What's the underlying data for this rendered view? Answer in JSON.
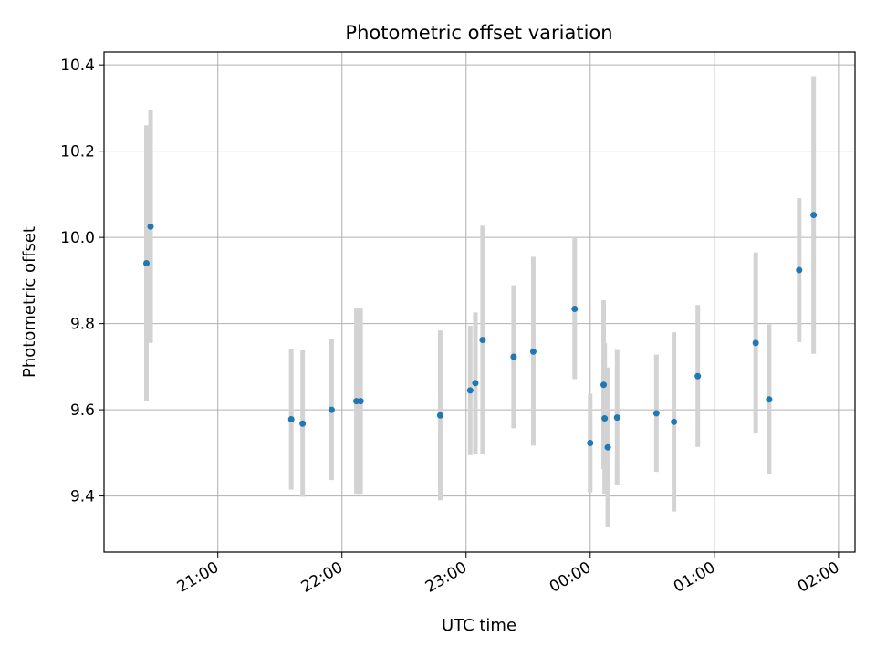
{
  "chart_data": {
    "type": "scatter",
    "title": "Photometric offset variation",
    "xlabel": "UTC time",
    "ylabel": "Photometric offset",
    "x_tick_labels": [
      "21:00",
      "22:00",
      "23:00",
      "00:00",
      "01:00",
      "02:00"
    ],
    "x_tick_minutes": [
      1260,
      1320,
      1380,
      1440,
      1500,
      1560
    ],
    "xlim_minutes": [
      1205,
      1568
    ],
    "y_ticks": [
      "9.4",
      "9.6",
      "9.8",
      "10.0",
      "10.2",
      "10.4"
    ],
    "ylim": [
      9.27,
      10.43
    ],
    "grid": true,
    "marker_color": "#1f77b4",
    "errorbar_color": "#d3d3d3",
    "points": [
      {
        "t": 1225.5,
        "y": 9.94,
        "lo": 9.62,
        "hi": 10.26
      },
      {
        "t": 1227.5,
        "y": 10.025,
        "lo": 9.755,
        "hi": 10.295
      },
      {
        "t": 1295.5,
        "y": 9.578,
        "lo": 9.415,
        "hi": 9.742
      },
      {
        "t": 1301.0,
        "y": 9.568,
        "lo": 9.398,
        "hi": 9.738
      },
      {
        "t": 1315.0,
        "y": 9.6,
        "lo": 9.437,
        "hi": 9.765
      },
      {
        "t": 1327.0,
        "y": 9.62,
        "lo": 9.405,
        "hi": 9.835
      },
      {
        "t": 1329.0,
        "y": 9.62,
        "lo": 9.405,
        "hi": 9.835
      },
      {
        "t": 1367.5,
        "y": 9.587,
        "lo": 9.39,
        "hi": 9.784
      },
      {
        "t": 1382.0,
        "y": 9.645,
        "lo": 9.495,
        "hi": 9.795
      },
      {
        "t": 1384.5,
        "y": 9.662,
        "lo": 9.498,
        "hi": 9.826
      },
      {
        "t": 1388.0,
        "y": 9.762,
        "lo": 9.497,
        "hi": 10.027
      },
      {
        "t": 1403.0,
        "y": 9.723,
        "lo": 9.557,
        "hi": 9.889
      },
      {
        "t": 1412.5,
        "y": 9.735,
        "lo": 9.517,
        "hi": 9.955
      },
      {
        "t": 1432.5,
        "y": 9.834,
        "lo": 9.671,
        "hi": 9.998
      },
      {
        "t": 1440.0,
        "y": 9.523,
        "lo": 9.408,
        "hi": 9.637
      },
      {
        "t": 1446.5,
        "y": 9.658,
        "lo": 9.462,
        "hi": 9.854
      },
      {
        "t": 1447.0,
        "y": 9.58,
        "lo": 9.405,
        "hi": 9.755
      },
      {
        "t": 1448.5,
        "y": 9.513,
        "lo": 9.328,
        "hi": 9.698
      },
      {
        "t": 1453.0,
        "y": 9.582,
        "lo": 9.426,
        "hi": 9.739
      },
      {
        "t": 1472.0,
        "y": 9.592,
        "lo": 9.456,
        "hi": 9.728
      },
      {
        "t": 1480.5,
        "y": 9.572,
        "lo": 9.364,
        "hi": 9.78
      },
      {
        "t": 1492.0,
        "y": 9.678,
        "lo": 9.514,
        "hi": 9.843
      },
      {
        "t": 1520.0,
        "y": 9.755,
        "lo": 9.545,
        "hi": 9.965
      },
      {
        "t": 1526.5,
        "y": 9.624,
        "lo": 9.45,
        "hi": 9.798
      },
      {
        "t": 1541.0,
        "y": 9.924,
        "lo": 9.757,
        "hi": 10.091
      },
      {
        "t": 1548.0,
        "y": 10.052,
        "lo": 9.73,
        "hi": 10.374
      }
    ]
  }
}
